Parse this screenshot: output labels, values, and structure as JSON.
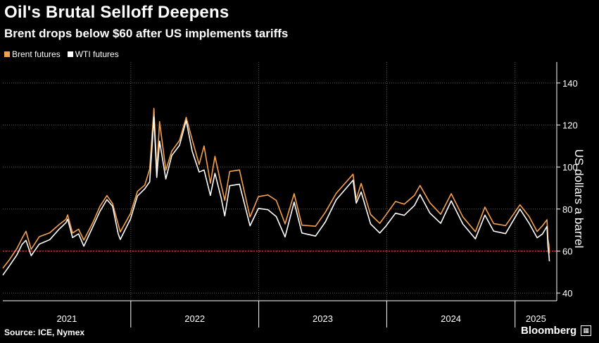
{
  "header": {
    "title": "Oil's Brutal Selloff Deepens",
    "subtitle": "Brent drops below $60 after US implements tariffs"
  },
  "footer": {
    "source": "Source: ICE, Nymex",
    "brand": "Bloomberg"
  },
  "chart_data": {
    "type": "line",
    "title": "Oil's Brutal Selloff Deepens",
    "subtitle": "Brent drops below $60 after US implements tariffs",
    "ylabel": "US dollars a barrel",
    "xlabel": "",
    "ylim": [
      36,
      150
    ],
    "xlim": [
      "2021-01-01",
      "2025-04-30"
    ],
    "yticks": [
      40,
      60,
      80,
      100,
      120,
      140
    ],
    "xticks": [
      "2021",
      "2022",
      "2023",
      "2024",
      "2025"
    ],
    "grid": true,
    "legend_position": "top-left",
    "reference_line": {
      "value": 60,
      "color": "#e0383e"
    },
    "series": [
      {
        "name": "Brent futures",
        "color": "#f5a04c",
        "points": [
          [
            "2021-01-01",
            51.8
          ],
          [
            "2021-01-20",
            55.9
          ],
          [
            "2021-02-10",
            61.1
          ],
          [
            "2021-02-25",
            66.1
          ],
          [
            "2021-03-08",
            69.4
          ],
          [
            "2021-03-23",
            60.8
          ],
          [
            "2021-04-15",
            66.8
          ],
          [
            "2021-05-15",
            68.7
          ],
          [
            "2021-06-10",
            72.5
          ],
          [
            "2021-06-30",
            75.1
          ],
          [
            "2021-07-05",
            77.2
          ],
          [
            "2021-07-19",
            68.6
          ],
          [
            "2021-08-05",
            70.4
          ],
          [
            "2021-08-20",
            65.2
          ],
          [
            "2021-09-15",
            73.6
          ],
          [
            "2021-10-05",
            81.3
          ],
          [
            "2021-10-25",
            86.4
          ],
          [
            "2021-11-10",
            82.6
          ],
          [
            "2021-11-26",
            72.7
          ],
          [
            "2021-12-02",
            69.1
          ],
          [
            "2021-12-31",
            77.8
          ],
          [
            "2022-01-20",
            88.4
          ],
          [
            "2022-02-10",
            91.4
          ],
          [
            "2022-02-24",
            99.1
          ],
          [
            "2022-03-08",
            127.9
          ],
          [
            "2022-03-16",
            98.0
          ],
          [
            "2022-03-24",
            121.6
          ],
          [
            "2022-04-11",
            98.5
          ],
          [
            "2022-04-28",
            107.6
          ],
          [
            "2022-05-20",
            112.6
          ],
          [
            "2022-06-08",
            123.6
          ],
          [
            "2022-06-25",
            113.1
          ],
          [
            "2022-07-15",
            101.2
          ],
          [
            "2022-07-29",
            110.0
          ],
          [
            "2022-08-16",
            92.3
          ],
          [
            "2022-08-29",
            105.1
          ],
          [
            "2022-09-16",
            91.4
          ],
          [
            "2022-09-26",
            84.1
          ],
          [
            "2022-10-10",
            97.9
          ],
          [
            "2022-11-07",
            98.6
          ],
          [
            "2022-12-07",
            76.2
          ],
          [
            "2022-12-31",
            85.9
          ],
          [
            "2023-01-27",
            86.7
          ],
          [
            "2023-02-20",
            84.1
          ],
          [
            "2023-03-17",
            72.9
          ],
          [
            "2023-04-12",
            87.3
          ],
          [
            "2023-05-04",
            72.3
          ],
          [
            "2023-06-12",
            71.8
          ],
          [
            "2023-07-10",
            78.5
          ],
          [
            "2023-08-10",
            87.5
          ],
          [
            "2023-09-27",
            96.6
          ],
          [
            "2023-10-06",
            84.6
          ],
          [
            "2023-10-20",
            92.2
          ],
          [
            "2023-11-16",
            77.4
          ],
          [
            "2023-12-12",
            73.2
          ],
          [
            "2023-12-29",
            77.0
          ],
          [
            "2024-01-26",
            83.6
          ],
          [
            "2024-02-20",
            82.3
          ],
          [
            "2024-03-20",
            86.5
          ],
          [
            "2024-04-05",
            91.2
          ],
          [
            "2024-05-03",
            83.0
          ],
          [
            "2024-06-03",
            77.5
          ],
          [
            "2024-07-03",
            87.3
          ],
          [
            "2024-08-05",
            76.3
          ],
          [
            "2024-09-10",
            69.2
          ],
          [
            "2024-10-07",
            80.9
          ],
          [
            "2024-11-01",
            73.1
          ],
          [
            "2024-12-05",
            72.1
          ],
          [
            "2025-01-15",
            82.0
          ],
          [
            "2025-02-10",
            76.5
          ],
          [
            "2025-03-05",
            69.3
          ],
          [
            "2025-03-20",
            72.0
          ],
          [
            "2025-04-02",
            74.9
          ],
          [
            "2025-04-05",
            65.6
          ],
          [
            "2025-04-08",
            62.8
          ],
          [
            "2025-04-09",
            58.9
          ]
        ]
      },
      {
        "name": "WTI futures",
        "color": "#ffffff",
        "points": [
          [
            "2021-01-01",
            48.5
          ],
          [
            "2021-01-20",
            53.0
          ],
          [
            "2021-02-10",
            58.1
          ],
          [
            "2021-02-25",
            63.2
          ],
          [
            "2021-03-08",
            65.1
          ],
          [
            "2021-03-23",
            57.8
          ],
          [
            "2021-04-15",
            63.3
          ],
          [
            "2021-05-15",
            65.4
          ],
          [
            "2021-06-10",
            70.3
          ],
          [
            "2021-06-30",
            73.5
          ],
          [
            "2021-07-05",
            75.2
          ],
          [
            "2021-07-19",
            66.4
          ],
          [
            "2021-08-05",
            68.2
          ],
          [
            "2021-08-20",
            62.3
          ],
          [
            "2021-09-15",
            71.6
          ],
          [
            "2021-10-05",
            78.9
          ],
          [
            "2021-10-25",
            84.5
          ],
          [
            "2021-11-10",
            81.3
          ],
          [
            "2021-11-26",
            68.2
          ],
          [
            "2021-12-02",
            65.5
          ],
          [
            "2021-12-31",
            75.2
          ],
          [
            "2022-01-20",
            86.2
          ],
          [
            "2022-02-10",
            89.6
          ],
          [
            "2022-02-24",
            93.0
          ],
          [
            "2022-03-08",
            123.7
          ],
          [
            "2022-03-16",
            95.0
          ],
          [
            "2022-03-24",
            112.3
          ],
          [
            "2022-04-11",
            94.3
          ],
          [
            "2022-04-28",
            105.5
          ],
          [
            "2022-05-20",
            110.3
          ],
          [
            "2022-06-08",
            122.1
          ],
          [
            "2022-06-25",
            107.6
          ],
          [
            "2022-07-15",
            97.6
          ],
          [
            "2022-07-29",
            98.6
          ],
          [
            "2022-08-16",
            86.5
          ],
          [
            "2022-08-29",
            97.0
          ],
          [
            "2022-09-16",
            85.1
          ],
          [
            "2022-09-26",
            76.7
          ],
          [
            "2022-10-10",
            91.1
          ],
          [
            "2022-11-07",
            91.8
          ],
          [
            "2022-12-07",
            72.0
          ],
          [
            "2022-12-31",
            80.3
          ],
          [
            "2023-01-27",
            79.7
          ],
          [
            "2023-02-20",
            76.4
          ],
          [
            "2023-03-17",
            66.7
          ],
          [
            "2023-04-12",
            83.3
          ],
          [
            "2023-05-04",
            68.6
          ],
          [
            "2023-06-12",
            67.1
          ],
          [
            "2023-07-10",
            73.9
          ],
          [
            "2023-08-10",
            84.4
          ],
          [
            "2023-09-27",
            93.7
          ],
          [
            "2023-10-06",
            82.8
          ],
          [
            "2023-10-20",
            88.1
          ],
          [
            "2023-11-16",
            72.9
          ],
          [
            "2023-12-12",
            68.6
          ],
          [
            "2023-12-29",
            71.7
          ],
          [
            "2024-01-26",
            78.0
          ],
          [
            "2024-02-20",
            77.0
          ],
          [
            "2024-03-20",
            81.7
          ],
          [
            "2024-04-05",
            86.9
          ],
          [
            "2024-05-03",
            78.1
          ],
          [
            "2024-06-03",
            73.2
          ],
          [
            "2024-07-03",
            83.9
          ],
          [
            "2024-08-05",
            72.9
          ],
          [
            "2024-09-10",
            65.8
          ],
          [
            "2024-10-07",
            77.1
          ],
          [
            "2024-11-01",
            69.5
          ],
          [
            "2024-12-05",
            68.3
          ],
          [
            "2025-01-15",
            80.0
          ],
          [
            "2025-02-10",
            73.3
          ],
          [
            "2025-03-05",
            66.3
          ],
          [
            "2025-03-20",
            68.1
          ],
          [
            "2025-04-02",
            71.7
          ],
          [
            "2025-04-05",
            61.99
          ],
          [
            "2025-04-08",
            57.6
          ],
          [
            "2025-04-09",
            55.1
          ]
        ]
      }
    ]
  }
}
